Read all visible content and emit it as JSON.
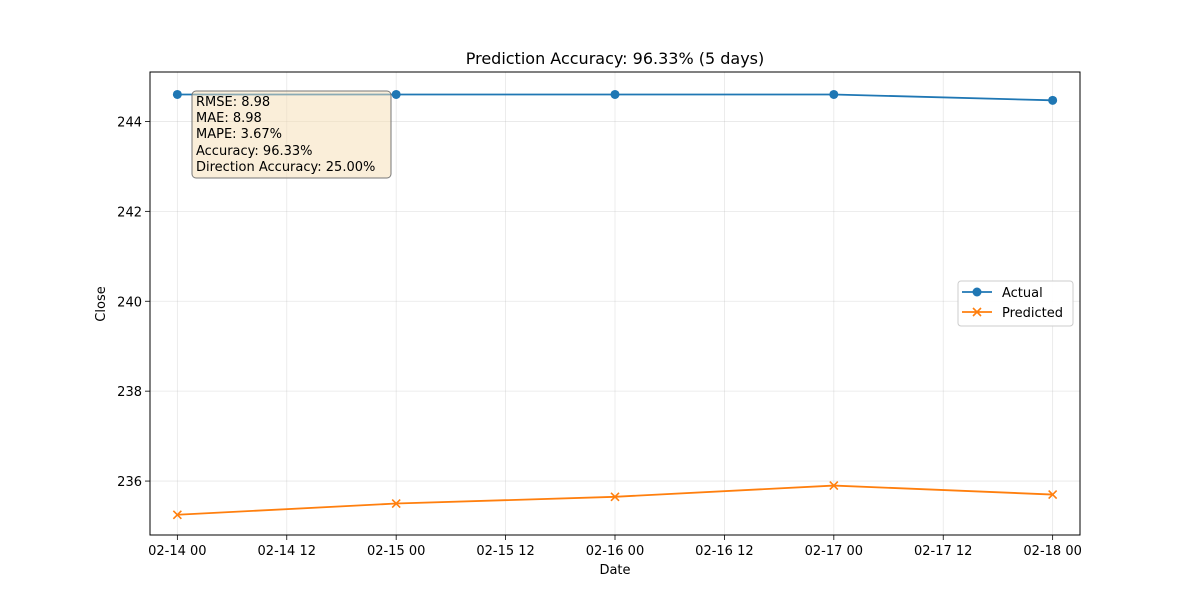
{
  "chart_data": {
    "type": "line",
    "title": "Prediction Accuracy: 96.33% (5 days)",
    "xlabel": "Date",
    "ylabel": "Close",
    "x": [
      "02-14 00",
      "02-15 00",
      "02-16 00",
      "02-17 00",
      "02-18 00"
    ],
    "x_ticks": [
      "02-14 00",
      "02-14 12",
      "02-15 00",
      "02-15 12",
      "02-16 00",
      "02-16 12",
      "02-17 00",
      "02-17 12",
      "02-18 00"
    ],
    "y_ticks": [
      "236",
      "238",
      "240",
      "242",
      "244"
    ],
    "xlim": [
      "02-13 21",
      "02-18 03"
    ],
    "ylim": [
      234.8,
      245.1
    ],
    "grid": true,
    "legend_position": "center-right",
    "series": [
      {
        "name": "Actual",
        "marker": "circle",
        "color": "#1f77b4",
        "values": [
          244.6,
          244.6,
          244.6,
          244.6,
          244.47
        ]
      },
      {
        "name": "Predicted",
        "marker": "x",
        "color": "#ff7f0e",
        "values": [
          235.25,
          235.5,
          235.65,
          235.9,
          235.7
        ]
      }
    ],
    "annotation": {
      "lines": [
        "RMSE: 8.98",
        "MAE: 8.98",
        "MAPE: 3.67%",
        "Accuracy: 96.33%",
        "Direction Accuracy: 25.00%"
      ],
      "background": "#f5deb3"
    }
  }
}
